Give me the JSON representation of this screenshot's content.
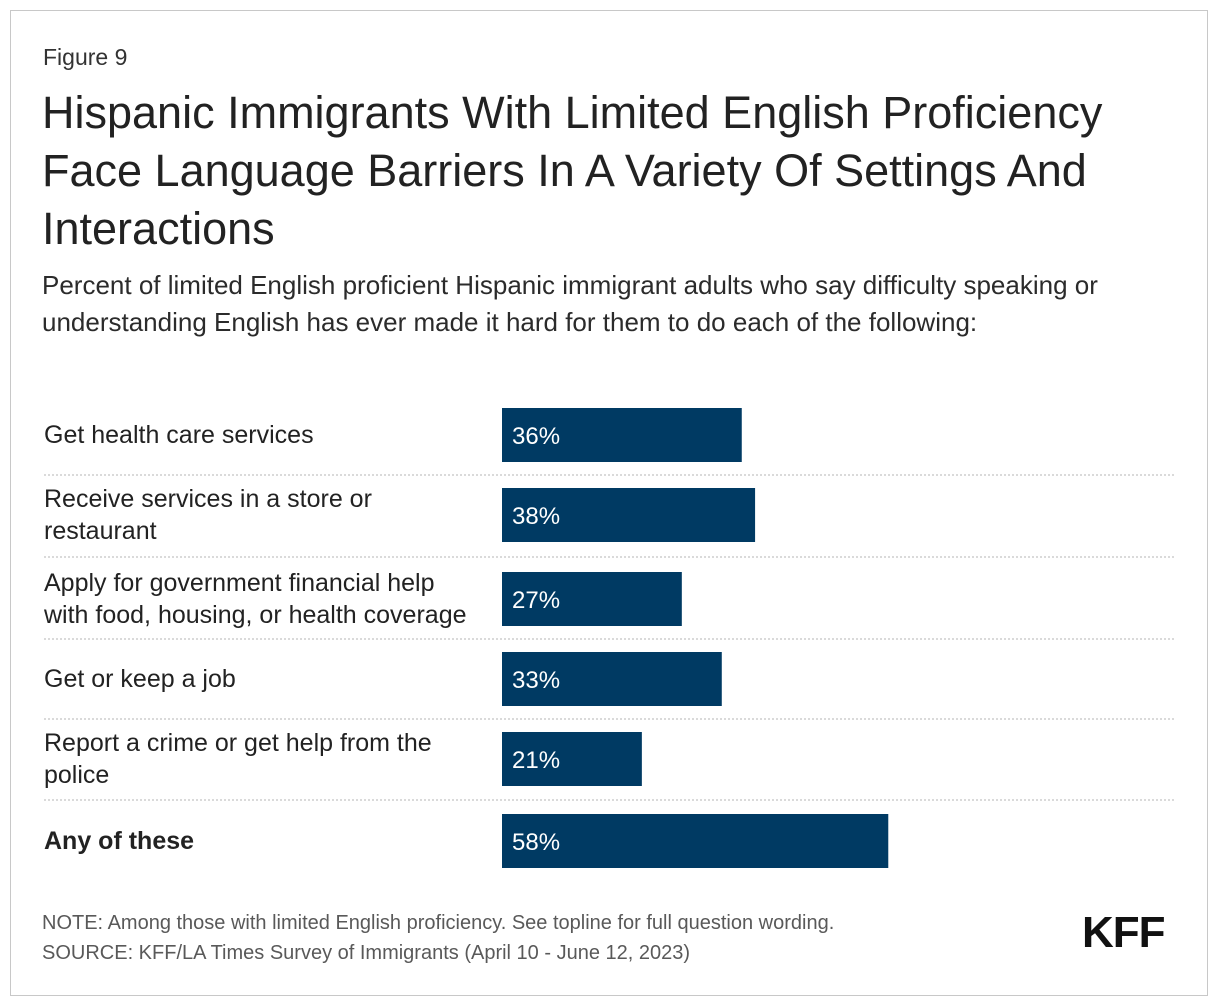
{
  "figure_label": "Figure 9",
  "title": "Hispanic Immigrants With Limited English Proficiency Face Language Barriers In A Variety Of Settings And Interactions",
  "subtitle": "Percent of limited English proficient Hispanic immigrant adults who say difficulty speaking or understanding English has ever made it hard for them to do each of the following:",
  "chart_data": {
    "type": "bar",
    "orientation": "horizontal",
    "categories": [
      [
        "Get health care services"
      ],
      [
        "Receive services in a store or",
        "restaurant"
      ],
      [
        "Apply for government financial help",
        "with food, housing, or health coverage"
      ],
      [
        "Get or keep a job"
      ],
      [
        "Report a crime or get help from the",
        "police"
      ],
      [
        "Any of these"
      ]
    ],
    "values": [
      36,
      38,
      27,
      33,
      21,
      58
    ],
    "value_labels": [
      "36%",
      "38%",
      "27%",
      "33%",
      "21%",
      "58%"
    ],
    "bold_categories": [
      5
    ],
    "bar_color": "#003A63",
    "value_label_color": "#ffffff",
    "separator_style": "dotted",
    "xlim": [
      0,
      100
    ]
  },
  "note": "NOTE: Among those with limited English proficiency. See topline for full question wording.",
  "source": "SOURCE: KFF/LA Times Survey of Immigrants (April 10 - June 12, 2023)",
  "logo": "KFF"
}
